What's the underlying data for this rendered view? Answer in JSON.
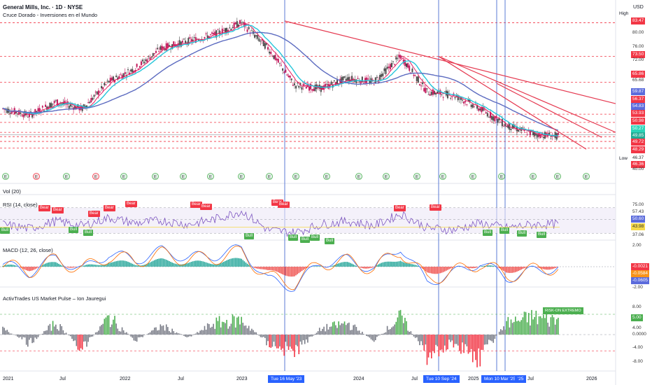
{
  "header": {
    "title": "General Mills, Inc. · 1D · NYSE",
    "subtitle": "Cruce Dorado - Inversiones en el Mundo",
    "currency": "USD",
    "high_label": "High",
    "low_label": "Low"
  },
  "panes": {
    "vol": "Vol (20)",
    "rsi": "RSI (14, close)",
    "macd": "MACD (12, 26, close)",
    "pulse": "ActivTrades US Market Pulse – Ion Jauregui"
  },
  "price_axis": [
    {
      "text": "83.47",
      "style": "red"
    },
    {
      "text": "80.00",
      "style": "grey"
    },
    {
      "text": "76.00",
      "style": "grey"
    },
    {
      "text": "73.50",
      "style": "red"
    },
    {
      "text": "72.00",
      "style": "grey"
    },
    {
      "text": "65.86",
      "style": "red"
    },
    {
      "text": "65.68",
      "style": "grey"
    },
    {
      "text": "59.87",
      "style": "blue"
    },
    {
      "text": "56.37",
      "style": "red"
    },
    {
      "text": "54.83",
      "style": "blue"
    },
    {
      "text": "53.93",
      "style": "red"
    },
    {
      "text": "50.98",
      "style": "red"
    },
    {
      "text": "50.27",
      "style": "teal"
    },
    {
      "text": "49.85",
      "style": "green"
    },
    {
      "text": "49.72",
      "style": "red"
    },
    {
      "text": "48.29",
      "style": "red"
    },
    {
      "text": "46.37",
      "style": "grey"
    },
    {
      "text": "46.36",
      "style": "red"
    },
    {
      "text": "40.00",
      "style": "grey"
    }
  ],
  "rsi_axis": [
    {
      "text": "75.00",
      "style": "grey"
    },
    {
      "text": "57.43",
      "style": "grey"
    },
    {
      "text": "50.60",
      "style": "blue"
    },
    {
      "text": "43.98",
      "style": "yellow"
    },
    {
      "text": "37.06",
      "style": "grey"
    }
  ],
  "macd_axis": [
    {
      "text": "2.00",
      "style": "grey"
    },
    {
      "text": "-0.0021",
      "style": "red"
    },
    {
      "text": "-0.0584",
      "style": "orange"
    },
    {
      "text": "-0.0605",
      "style": "blue"
    },
    {
      "text": "-2.00",
      "style": "grey"
    }
  ],
  "pulse_axis": [
    {
      "text": "8.00",
      "style": "grey"
    },
    {
      "text": "5.00",
      "style": "lime"
    },
    {
      "text": "4.00",
      "style": "grey"
    },
    {
      "text": "0.0000",
      "style": "grey"
    },
    {
      "text": "-4.00",
      "style": "grey"
    },
    {
      "text": "-8.00",
      "style": "grey"
    }
  ],
  "time_axis": [
    "2021",
    "Jul",
    "2022",
    "Jul",
    "2023",
    "2024",
    "Jul",
    "2025",
    "Jul",
    "2026"
  ],
  "time_highlights": [
    "Tue 16 May '23",
    "Tue 10 Sep '24",
    "Mon 10 Mar '25",
    "'25"
  ],
  "rsi_signals": [
    {
      "text": "Bear",
      "kind": "bear"
    },
    {
      "text": "Bear",
      "kind": "bear"
    },
    {
      "text": "Bear",
      "kind": "bear"
    },
    {
      "text": "Bear",
      "kind": "bear"
    },
    {
      "text": "Bear",
      "kind": "bear"
    },
    {
      "text": "Bear",
      "kind": "bear"
    },
    {
      "text": "Bear",
      "kind": "bear"
    },
    {
      "text": "Bear",
      "kind": "bear"
    },
    {
      "text": "Bear",
      "kind": "bear"
    },
    {
      "text": "Bear",
      "kind": "bear"
    },
    {
      "text": "Bear",
      "kind": "bear"
    },
    {
      "text": "Bull",
      "kind": "bull"
    },
    {
      "text": "Bull",
      "kind": "bull"
    },
    {
      "text": "Bull",
      "kind": "bull"
    },
    {
      "text": "Bull",
      "kind": "bull"
    },
    {
      "text": "Bull",
      "kind": "bull"
    },
    {
      "text": "Bull",
      "kind": "bull"
    },
    {
      "text": "Bull",
      "kind": "bull"
    },
    {
      "text": "Bull",
      "kind": "bull"
    },
    {
      "text": "Bull",
      "kind": "bull"
    },
    {
      "text": "Bull",
      "kind": "bull"
    },
    {
      "text": "Bull",
      "kind": "bull"
    },
    {
      "text": "Bull",
      "kind": "bull"
    }
  ],
  "pulse_tag": "RISK-ON EXTREMO",
  "earnings_marker": "E",
  "colors": {
    "candle_up": "#c2185b",
    "candle_down": "#4a4a4a",
    "ma_fast": "#26c6da",
    "ma_slow": "#5c6bc0",
    "ma_red": "#e91e63",
    "trendline": "#e53950",
    "resistance": "#f23645",
    "rsi_line": "#7e57c2",
    "macd_line": "#2962ff",
    "signal_line": "#ff6d00",
    "pulse_up": "#4caf50",
    "pulse_down": "#f23645"
  },
  "chart_data": {
    "type": "line",
    "series": [
      {
        "name": "close",
        "x": [
          "2021-01",
          "2021-04",
          "2021-07",
          "2021-10",
          "2022-01",
          "2022-04",
          "2022-07",
          "2022-10",
          "2023-01",
          "2023-05",
          "2023-07",
          "2023-10",
          "2024-01",
          "2024-04",
          "2024-07",
          "2024-09",
          "2024-11",
          "2025-01",
          "2025-03",
          "2025-05",
          "2025-07",
          "2025-09"
        ],
        "values": [
          58,
          56,
          60,
          58,
          66,
          70,
          76,
          78,
          80,
          83.5,
          76,
          65,
          64,
          67,
          66,
          73.5,
          63,
          62,
          58,
          53,
          50.5,
          49.8
        ]
      }
    ],
    "ylim": [
      40,
      84
    ],
    "rsi": {
      "values": [
        50,
        44,
        55,
        48,
        60,
        52,
        56,
        50,
        58,
        70,
        42,
        38,
        50,
        55,
        48,
        66,
        45,
        42,
        52,
        45,
        50,
        50.6
      ],
      "upper": 75,
      "lower": 37.06
    },
    "macd": {
      "values": [
        0.2,
        -0.5,
        0.8,
        -0.3,
        1.2,
        0.6,
        1.4,
        0.8,
        1.0,
        1.6,
        -1.2,
        -1.8,
        0.4,
        0.6,
        -0.2,
        1.8,
        -1.4,
        -0.6,
        0.4,
        -1.0,
        -0.4,
        -0.0021
      ]
    },
    "pulse": {
      "values": [
        2,
        -3,
        4,
        -5,
        6,
        -2,
        3,
        -1,
        4,
        5,
        -3,
        -6,
        2,
        4,
        -2,
        6,
        -7,
        -3,
        -8,
        4,
        6,
        5
      ]
    }
  }
}
